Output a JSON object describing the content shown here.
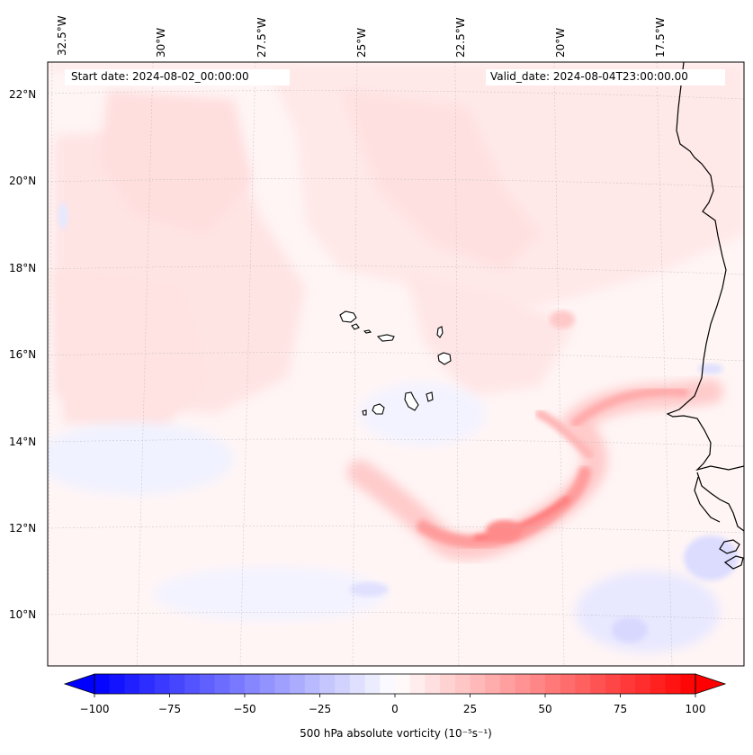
{
  "start_date": "Start date: 2024-08-02_00:00:00",
  "valid_date": "Valid_date: 2024-08-04T23:00:00.00",
  "lon_labels": [
    "32.5°W",
    "30°W",
    "27.5°W",
    "25°W",
    "22.5°W",
    "20°W",
    "17.5°W"
  ],
  "lat_labels": [
    "22°N",
    "20°N",
    "18°N",
    "16°N",
    "14°N",
    "12°N",
    "10°N"
  ],
  "colorbar": {
    "min": -100,
    "max": 100,
    "step": 5,
    "ticks": [
      "−100",
      "−75",
      "−50",
      "−25",
      "0",
      "25",
      "50",
      "75",
      "100"
    ],
    "label": "500 hPa absolute vorticity (10⁻⁵s⁻¹)",
    "colormap": "bwr",
    "extend": "both"
  },
  "colors": {
    "positive": "#ff0000",
    "negative": "#0000ff",
    "neutral": "#ffffff",
    "coastline": "#000000",
    "grid": "#b0b0b0"
  }
}
